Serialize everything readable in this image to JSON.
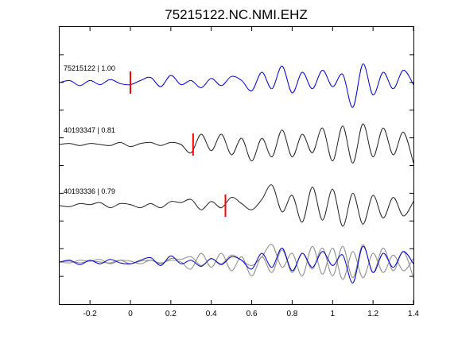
{
  "chart_data": {
    "type": "line",
    "title": "75215122.NC.NMI.EHZ",
    "xlabel": "",
    "ylabel": "",
    "xlim": [
      -0.35,
      1.4
    ],
    "x_ticks": [
      -0.2,
      0,
      0.2,
      0.4,
      0.6,
      0.8,
      1,
      1.2,
      1.4
    ],
    "x_tick_labels": [
      "-0.2",
      "0",
      "0.2",
      "0.4",
      "0.6",
      "0.8",
      "1",
      "1.2",
      "1.4"
    ],
    "grid": false,
    "colors": {
      "main": "#0000cc",
      "other": "#222222",
      "other_overlay": "#888888",
      "pick": "#ff0000",
      "axes": "#000000"
    },
    "series": [
      {
        "id": "75215122",
        "label": "75215122 | 1.00",
        "color": "main",
        "pick_time": 0.0,
        "x": [
          -0.35,
          -0.3,
          -0.25,
          -0.2,
          -0.15,
          -0.1,
          -0.05,
          0,
          0.05,
          0.1,
          0.15,
          0.2,
          0.25,
          0.3,
          0.35,
          0.4,
          0.45,
          0.5,
          0.55,
          0.6,
          0.65,
          0.7,
          0.75,
          0.8,
          0.85,
          0.9,
          0.95,
          1.0,
          1.05,
          1.1,
          1.15,
          1.2,
          1.25,
          1.3,
          1.35,
          1.4
        ],
        "values": [
          0.0,
          0.1,
          -0.15,
          0.1,
          -0.1,
          0.15,
          -0.05,
          -0.1,
          0.1,
          0.25,
          -0.2,
          0.35,
          -0.1,
          0.1,
          -0.25,
          0.2,
          -0.15,
          0.3,
          0.1,
          -0.4,
          0.5,
          -0.3,
          0.8,
          -0.5,
          0.5,
          -0.3,
          0.6,
          -0.2,
          0.4,
          -1.2,
          0.9,
          -0.6,
          0.5,
          -0.3,
          0.6,
          -0.1
        ]
      },
      {
        "id": "40193347",
        "label": "40193347 | 0.81",
        "color": "other",
        "pick_time": 0.31,
        "x": [
          -0.35,
          -0.3,
          -0.25,
          -0.2,
          -0.15,
          -0.1,
          -0.05,
          0,
          0.05,
          0.1,
          0.15,
          0.2,
          0.25,
          0.3,
          0.35,
          0.4,
          0.45,
          0.5,
          0.55,
          0.6,
          0.65,
          0.7,
          0.75,
          0.8,
          0.85,
          0.9,
          0.95,
          1.0,
          1.05,
          1.1,
          1.15,
          1.2,
          1.25,
          1.3,
          1.35,
          1.4
        ],
        "values": [
          0.0,
          0.05,
          -0.05,
          0.05,
          0.0,
          -0.05,
          0.1,
          -0.1,
          0.05,
          0.1,
          -0.05,
          0.1,
          0.0,
          -0.4,
          0.5,
          -0.3,
          0.5,
          -0.5,
          0.3,
          -0.8,
          0.3,
          -0.6,
          0.7,
          -0.6,
          0.5,
          -0.4,
          0.8,
          -0.8,
          0.9,
          -0.9,
          1.0,
          -0.6,
          0.8,
          -0.5,
          0.6,
          -0.9
        ]
      },
      {
        "id": "40193336",
        "label": "40193336 | 0.79",
        "color": "other",
        "pick_time": 0.47,
        "x": [
          -0.35,
          -0.3,
          -0.25,
          -0.2,
          -0.15,
          -0.1,
          -0.05,
          0,
          0.05,
          0.1,
          0.15,
          0.2,
          0.25,
          0.3,
          0.35,
          0.4,
          0.45,
          0.5,
          0.55,
          0.6,
          0.65,
          0.7,
          0.75,
          0.8,
          0.85,
          0.9,
          0.95,
          1.0,
          1.05,
          1.1,
          1.15,
          1.2,
          1.25,
          1.3,
          1.35,
          1.4
        ],
        "values": [
          0.0,
          -0.05,
          0.1,
          0.05,
          0.15,
          -0.1,
          0.1,
          0.05,
          -0.1,
          0.1,
          -0.1,
          0.2,
          0.15,
          0.3,
          -0.2,
          0.2,
          -0.1,
          0.4,
          0.1,
          -0.2,
          0.3,
          1.0,
          -0.3,
          0.5,
          -0.8,
          0.9,
          -0.7,
          0.8,
          -1.0,
          0.6,
          -0.9,
          0.5,
          -0.6,
          0.4,
          -0.5,
          0.2
        ]
      }
    ]
  }
}
